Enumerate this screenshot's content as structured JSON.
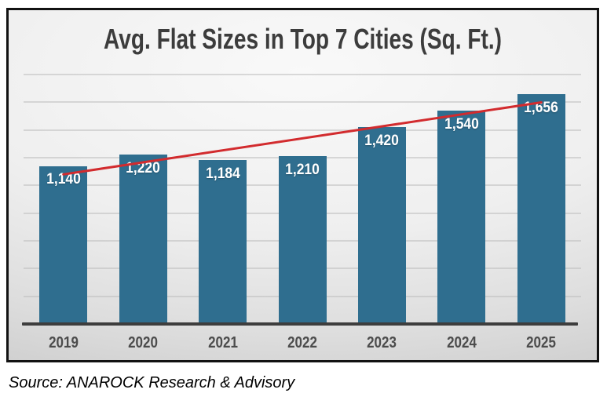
{
  "chart_data": {
    "type": "bar",
    "title": "Avg. Flat Sizes in Top 7 Cities (Sq. Ft.)",
    "categories": [
      "2019",
      "2020",
      "2021",
      "2022",
      "2023",
      "2024",
      "2025"
    ],
    "values": [
      1140,
      1220,
      1184,
      1210,
      1420,
      1540,
      1656
    ],
    "value_labels": [
      "1,140",
      "1,220",
      "1,184",
      "1,210",
      "1,420",
      "1,540",
      "1,656"
    ],
    "xlabel": "",
    "ylabel": "",
    "ylim": [
      0,
      1850
    ],
    "grid_step": 200,
    "grid": "horizontal-only",
    "legend_position": "none",
    "trendline": {
      "type": "linear"
    }
  },
  "colors": {
    "bar": "#2f6e8f",
    "trendline": "#d22b2e",
    "title_text": "#3c3c3c",
    "tick_text": "#4c4c4c",
    "value_label_text": "#ffffff",
    "gridline": "#bdbdbd",
    "axis_line": "#3d3d3d",
    "frame_border": "#121212"
  },
  "source_note": "Source: ANAROCK Research & Advisory"
}
